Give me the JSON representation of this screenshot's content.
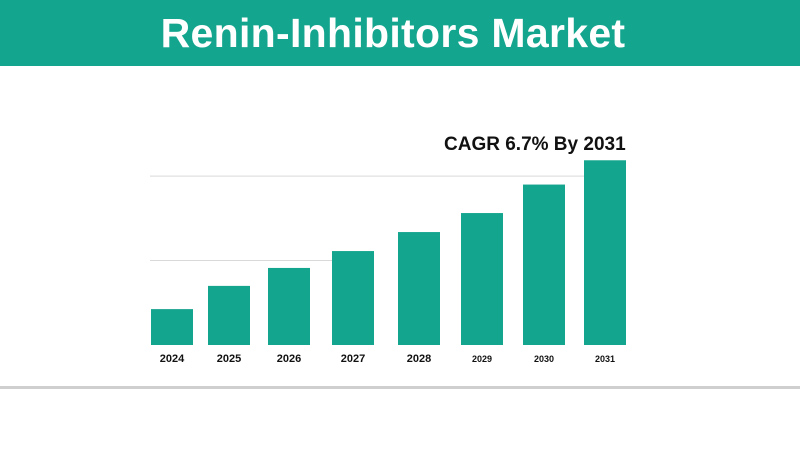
{
  "banner": {
    "title": "Renin-Inhibitors Market"
  },
  "colors": {
    "accent": "#14a58e",
    "bar": "#14a58e",
    "text": "#111111"
  },
  "chart_data": {
    "type": "bar",
    "title": "Renin-Inhibitors Market",
    "annotation": "CAGR 6.7% By 2031",
    "categories": [
      "2024",
      "2025",
      "2026",
      "2027",
      "2028",
      "2029",
      "2030",
      "2031"
    ],
    "values": [
      34,
      56,
      73,
      89,
      107,
      125,
      152,
      175
    ],
    "xlabel": "",
    "ylabel": "",
    "ylim": [
      0,
      180
    ],
    "grid": true,
    "legend": "none"
  }
}
